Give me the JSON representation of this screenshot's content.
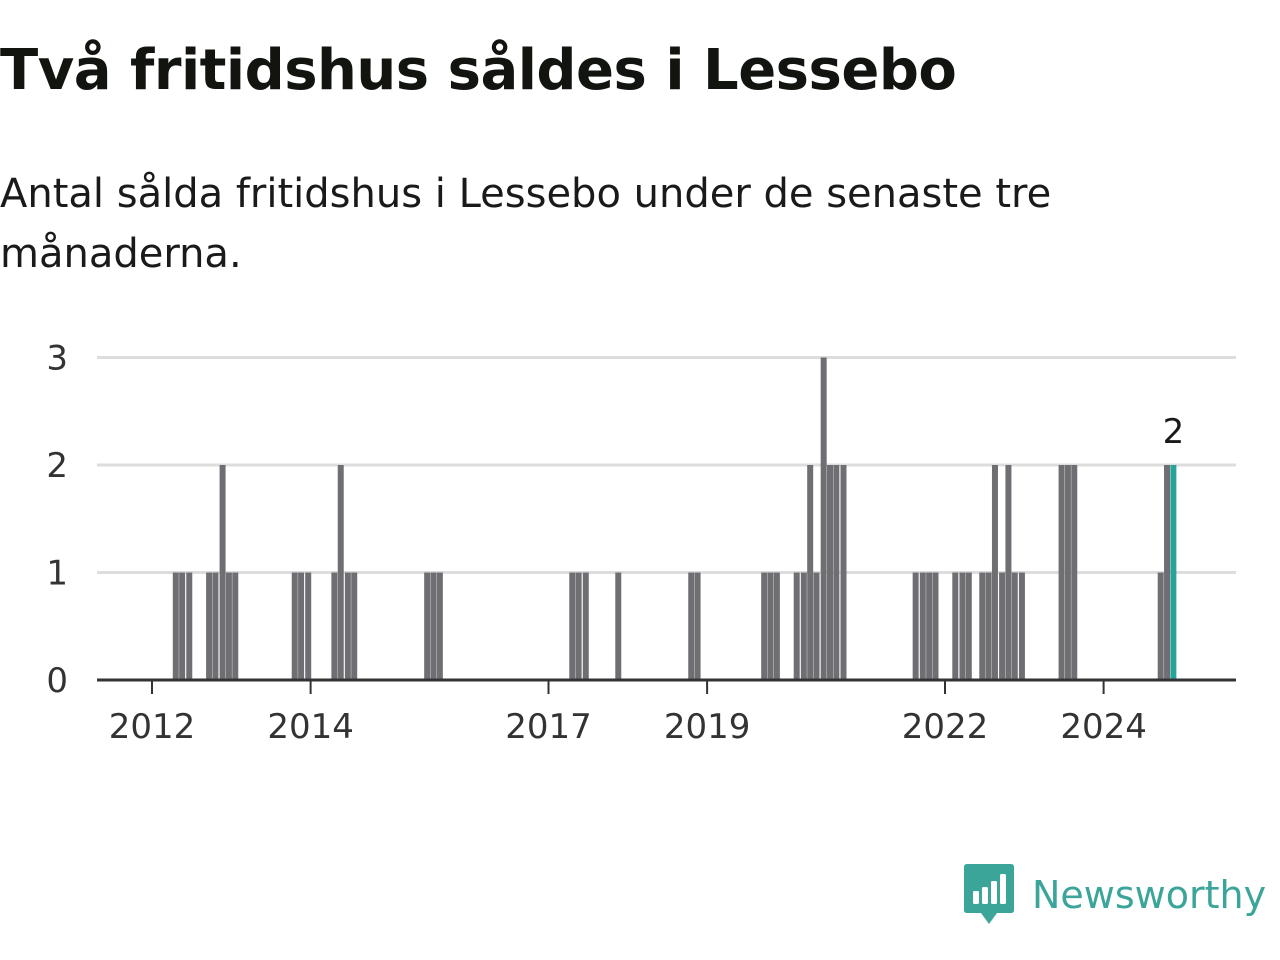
{
  "header": {
    "title": "Två fritidshus såldes i Lessebo",
    "subtitle": "Antal sålda fritidshus i Lessebo under de senaste tre månaderna."
  },
  "brand": {
    "name": "Newsworthy",
    "logo_icon": "newsworthy-logo-icon"
  },
  "colors": {
    "bar": "#6f6e73",
    "highlight": "#28a39a",
    "grid": "#dddddd",
    "axis": "#333333",
    "brand": "#3ba59a"
  },
  "chart_data": {
    "type": "bar",
    "title": "Två fritidshus såldes i Lessebo",
    "subtitle": "Antal sålda fritidshus i Lessebo under de senaste tre månaderna.",
    "xlabel": "",
    "ylabel": "",
    "ylim": [
      0,
      3
    ],
    "y_ticks": [
      0,
      1,
      2,
      3
    ],
    "x_ticks": [
      "2012",
      "2014",
      "2017",
      "2019",
      "2022",
      "2024"
    ],
    "grid": true,
    "legend": "none",
    "bars": [
      {
        "x": 2012.3,
        "value": 1
      },
      {
        "x": 2012.38,
        "value": 1
      },
      {
        "x": 2012.47,
        "value": 1
      },
      {
        "x": 2012.72,
        "value": 1
      },
      {
        "x": 2012.8,
        "value": 1
      },
      {
        "x": 2012.89,
        "value": 2
      },
      {
        "x": 2012.97,
        "value": 1
      },
      {
        "x": 2013.05,
        "value": 1
      },
      {
        "x": 2013.8,
        "value": 1
      },
      {
        "x": 2013.88,
        "value": 1
      },
      {
        "x": 2013.97,
        "value": 1
      },
      {
        "x": 2014.3,
        "value": 1
      },
      {
        "x": 2014.38,
        "value": 2
      },
      {
        "x": 2014.47,
        "value": 1
      },
      {
        "x": 2014.55,
        "value": 1
      },
      {
        "x": 2015.47,
        "value": 1
      },
      {
        "x": 2015.55,
        "value": 1
      },
      {
        "x": 2015.63,
        "value": 1
      },
      {
        "x": 2017.3,
        "value": 1
      },
      {
        "x": 2017.38,
        "value": 1
      },
      {
        "x": 2017.47,
        "value": 1
      },
      {
        "x": 2017.88,
        "value": 1
      },
      {
        "x": 2018.8,
        "value": 1
      },
      {
        "x": 2018.88,
        "value": 1
      },
      {
        "x": 2019.72,
        "value": 1
      },
      {
        "x": 2019.8,
        "value": 1
      },
      {
        "x": 2019.88,
        "value": 1
      },
      {
        "x": 2020.13,
        "value": 1
      },
      {
        "x": 2020.22,
        "value": 1
      },
      {
        "x": 2020.3,
        "value": 2
      },
      {
        "x": 2020.38,
        "value": 1
      },
      {
        "x": 2020.47,
        "value": 3
      },
      {
        "x": 2020.55,
        "value": 2
      },
      {
        "x": 2020.63,
        "value": 2
      },
      {
        "x": 2020.72,
        "value": 2
      },
      {
        "x": 2021.63,
        "value": 1
      },
      {
        "x": 2021.72,
        "value": 1
      },
      {
        "x": 2021.8,
        "value": 1
      },
      {
        "x": 2021.88,
        "value": 1
      },
      {
        "x": 2022.13,
        "value": 1
      },
      {
        "x": 2022.22,
        "value": 1
      },
      {
        "x": 2022.3,
        "value": 1
      },
      {
        "x": 2022.47,
        "value": 1
      },
      {
        "x": 2022.55,
        "value": 1
      },
      {
        "x": 2022.63,
        "value": 2
      },
      {
        "x": 2022.72,
        "value": 1
      },
      {
        "x": 2022.8,
        "value": 2
      },
      {
        "x": 2022.88,
        "value": 1
      },
      {
        "x": 2022.97,
        "value": 1
      },
      {
        "x": 2023.47,
        "value": 2
      },
      {
        "x": 2023.55,
        "value": 2
      },
      {
        "x": 2023.63,
        "value": 2
      },
      {
        "x": 2024.72,
        "value": 1
      },
      {
        "x": 2024.8,
        "value": 2
      },
      {
        "x": 2024.88,
        "value": 2,
        "highlight": true,
        "label": "2"
      }
    ]
  }
}
